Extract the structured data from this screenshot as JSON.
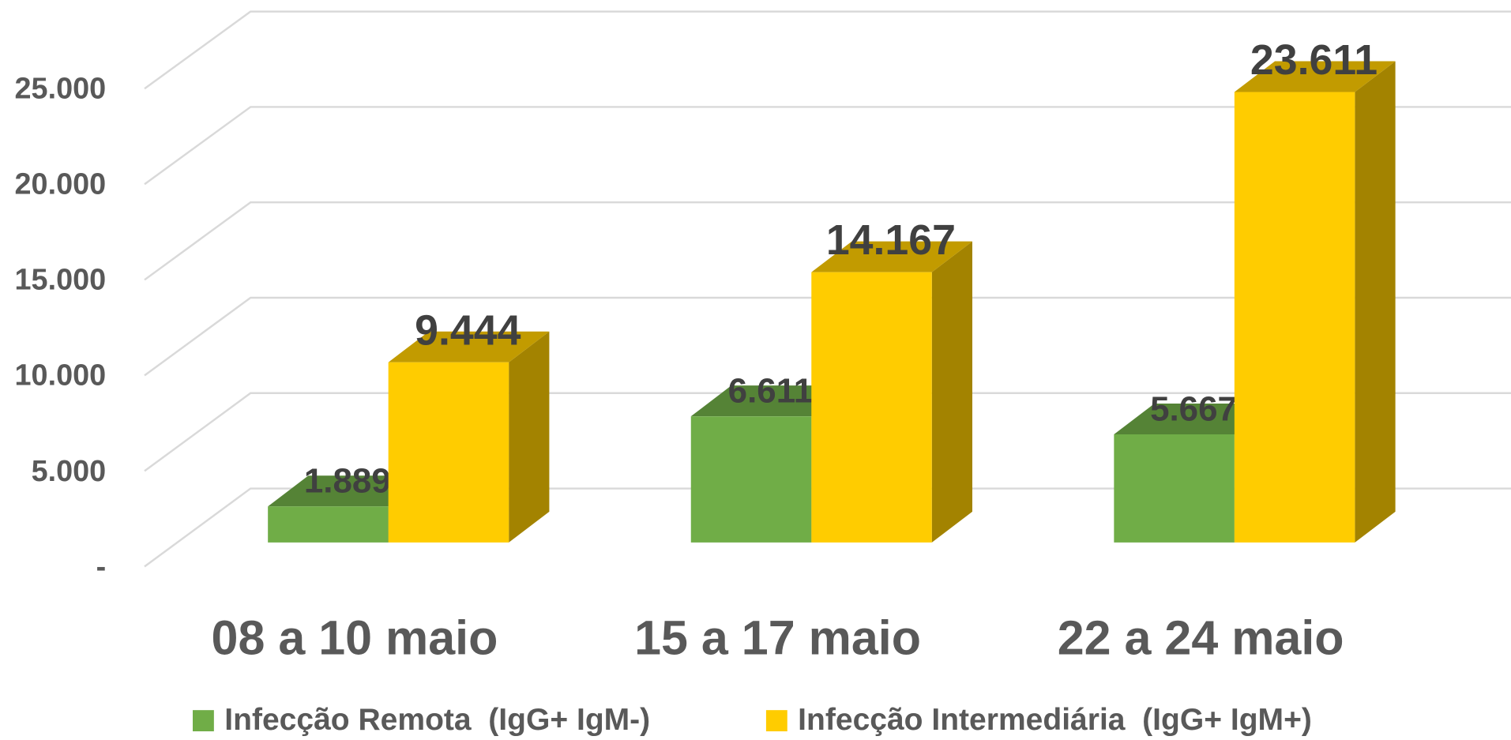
{
  "chart_data": {
    "type": "bar3d",
    "categories": [
      "08 a 10 maio",
      "15 a 17 maio",
      "22 a 24 maio"
    ],
    "series": [
      {
        "name": "Infecção Remota  (IgG+ IgM-)",
        "color": "#70ad47",
        "values": [
          1889,
          6611,
          5667
        ],
        "value_labels": [
          "1.889",
          "6.611",
          "5.667"
        ]
      },
      {
        "name": "Infecção Intermediária  (IgG+ IgM+)",
        "color": "#ffcc00",
        "values": [
          9444,
          14167,
          23611
        ],
        "value_labels": [
          "9.444",
          "14.167",
          "23.611"
        ]
      }
    ],
    "ylim": [
      0,
      25000
    ],
    "yticks": [
      {
        "value": 0,
        "label": "-"
      },
      {
        "value": 5000,
        "label": "5.000"
      },
      {
        "value": 10000,
        "label": "10.000"
      },
      {
        "value": 15000,
        "label": "15.000"
      },
      {
        "value": 20000,
        "label": "20.000"
      },
      {
        "value": 25000,
        "label": "25.000"
      }
    ],
    "grid": true,
    "legend": "bottom"
  }
}
